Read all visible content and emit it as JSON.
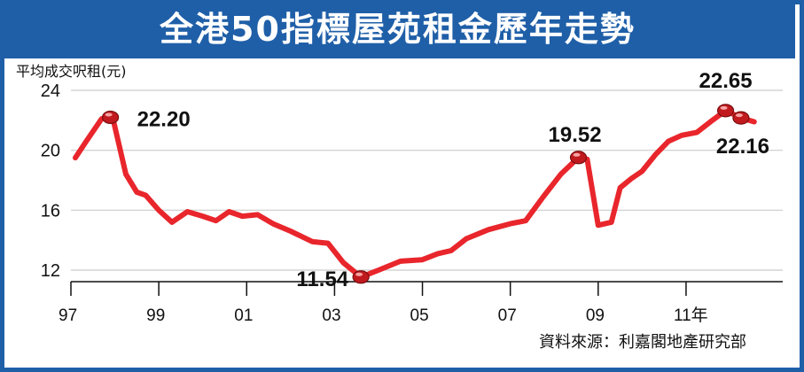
{
  "title": "全港50指標屋苑租金歷年走勢",
  "source": "資料來源：利嘉閣地產研究部",
  "colors": {
    "frame": "#1f5fa8",
    "line": "#e8262c",
    "marker": "#c01a1f",
    "grid": "#cccccc",
    "text": "#111111"
  },
  "chart_data": {
    "type": "line",
    "ylabel": "平均成交呎租(元)",
    "ylim": [
      12,
      24
    ],
    "yticks": [
      12,
      16,
      20,
      24
    ],
    "xlim": [
      1997,
      2013.2
    ],
    "xticks": [
      {
        "value": 1997,
        "label": "97"
      },
      {
        "value": 1999,
        "label": "99"
      },
      {
        "value": 2001,
        "label": "01"
      },
      {
        "value": 2003,
        "label": "03"
      },
      {
        "value": 2005,
        "label": "05"
      },
      {
        "value": 2007,
        "label": "07"
      },
      {
        "value": 2009,
        "label": "09"
      },
      {
        "value": 2011,
        "label": "11年"
      }
    ],
    "grid": true,
    "series": [
      {
        "x": [
          1997.1,
          1997.35,
          1997.7,
          1997.95,
          1998.25,
          1998.5,
          1998.7,
          1999.0,
          1999.3,
          1999.65,
          2000.0,
          2000.3,
          2000.6,
          2000.9,
          2001.25,
          2001.6,
          2002.0,
          2002.5,
          2002.85,
          2003.2,
          2003.6,
          2004.0,
          2004.5,
          2005.0,
          2005.35,
          2005.65,
          2006.0,
          2006.5,
          2007.0,
          2007.35,
          2007.75,
          2008.15,
          2008.55,
          2008.75,
          2009.0,
          2009.3,
          2009.5,
          2009.75,
          2010.0,
          2010.3,
          2010.6,
          2010.9,
          2011.25,
          2011.6,
          2011.9,
          2012.25,
          2012.55
        ],
        "y": [
          19.5,
          20.6,
          22.1,
          22.2,
          18.4,
          17.2,
          17.0,
          16.0,
          15.2,
          15.9,
          15.6,
          15.3,
          15.9,
          15.6,
          15.7,
          15.1,
          14.6,
          13.9,
          13.8,
          12.5,
          11.54,
          12.0,
          12.6,
          12.7,
          13.1,
          13.3,
          14.1,
          14.7,
          15.1,
          15.3,
          16.9,
          18.4,
          19.52,
          19.4,
          15.0,
          15.2,
          17.5,
          18.1,
          18.6,
          19.7,
          20.6,
          21.0,
          21.2,
          22.0,
          22.65,
          22.16,
          21.9
        ]
      }
    ],
    "highlights": [
      {
        "x": 1997.9,
        "y": 22.2,
        "label": "22.20"
      },
      {
        "x": 2003.6,
        "y": 11.54,
        "label": "11.54"
      },
      {
        "x": 2008.55,
        "y": 19.52,
        "label": "19.52"
      },
      {
        "x": 2011.9,
        "y": 22.65,
        "label": "22.65"
      },
      {
        "x": 2012.25,
        "y": 22.16,
        "label": "22.16"
      }
    ]
  }
}
